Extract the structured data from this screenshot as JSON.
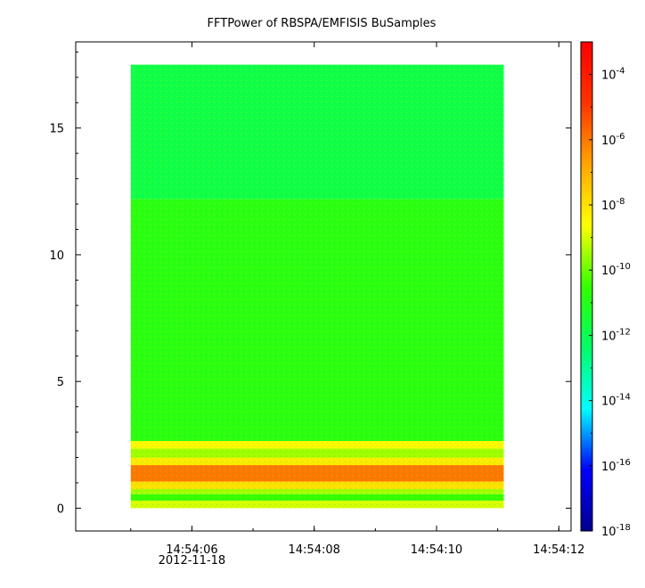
{
  "chart_data": {
    "type": "heatmap",
    "title": "FFTPower of RBSPA/EMFISIS  BuSamples",
    "xlabel": "",
    "ylabel": "",
    "x_ticks": [
      "14:54:06",
      "14:54:08",
      "14:54:10",
      "14:54:12"
    ],
    "x_tick_sublabel": "2012-11-18",
    "x_tick_sublabel_under": "14:54:06",
    "x_range_seconds": [
      "14:54:04.1",
      "14:54:12.2"
    ],
    "y_ticks": [
      0,
      5,
      10,
      15
    ],
    "ylim": [
      -0.9,
      18.4
    ],
    "data_extent": {
      "x_start": "14:54:05.0",
      "x_end": "14:54:11.1",
      "y_min": 0,
      "y_max": 17.5
    },
    "colorbar": {
      "scale": "log",
      "range": [
        1e-18,
        0.001
      ],
      "tick_labels": [
        {
          "base": "10",
          "exp": "-4"
        },
        {
          "base": "10",
          "exp": "-6"
        },
        {
          "base": "10",
          "exp": "-8"
        },
        {
          "base": "10",
          "exp": "-10"
        },
        {
          "base": "10",
          "exp": "-12"
        },
        {
          "base": "10",
          "exp": "-14"
        },
        {
          "base": "10",
          "exp": "-16"
        },
        {
          "base": "10",
          "exp": "-18"
        }
      ],
      "tick_values": [
        -4,
        -6,
        -8,
        -10,
        -12,
        -14,
        -16,
        -18
      ],
      "colormap": [
        "#00008f",
        "#0000ff",
        "#00ffff",
        "#00ff66",
        "#33ff00",
        "#ffff00",
        "#ffa500",
        "#ff3300",
        "#ff0000"
      ]
    },
    "bands": [
      {
        "y_from": 0.0,
        "y_to": 0.3,
        "log_power": -9.0
      },
      {
        "y_from": 0.3,
        "y_to": 0.55,
        "log_power": -10.5
      },
      {
        "y_from": 0.55,
        "y_to": 0.75,
        "log_power": -9.5
      },
      {
        "y_from": 0.75,
        "y_to": 1.05,
        "log_power": -8.0
      },
      {
        "y_from": 1.05,
        "y_to": 1.7,
        "log_power": -6.0
      },
      {
        "y_from": 1.7,
        "y_to": 2.0,
        "log_power": -8.2
      },
      {
        "y_from": 2.0,
        "y_to": 2.35,
        "log_power": -9.5
      },
      {
        "y_from": 2.35,
        "y_to": 2.65,
        "log_power": -8.5
      },
      {
        "y_from": 2.65,
        "y_to": 12.2,
        "log_power": -10.8
      },
      {
        "y_from": 12.2,
        "y_to": 17.5,
        "log_power": -11.8
      }
    ]
  }
}
